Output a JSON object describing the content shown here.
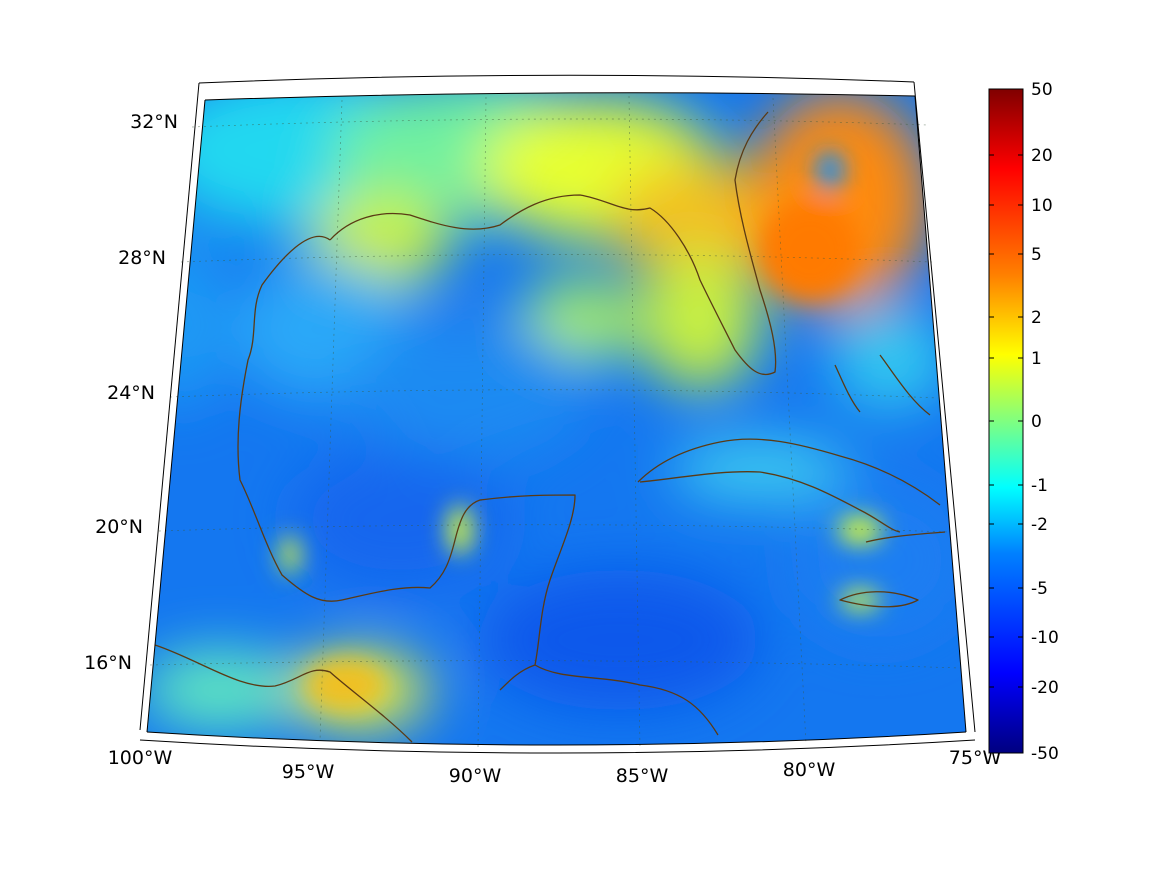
{
  "map": {
    "lon_labels": [
      "100°W",
      "95°W",
      "90°W",
      "85°W",
      "80°W",
      "75°W"
    ],
    "lat_labels": [
      "32°N",
      "28°N",
      "24°N",
      "20°N",
      "16°N"
    ]
  },
  "colorbar": {
    "tick_labels": [
      "50",
      "20",
      "10",
      "5",
      "2",
      "1",
      "0",
      "-1",
      "-2",
      "-5",
      "-10",
      "-20",
      "-50"
    ],
    "colormap": "jet",
    "colors": [
      "#000080",
      "#0000ff",
      "#0080ff",
      "#00ffff",
      "#80ff80",
      "#ffff00",
      "#ff8000",
      "#ff0000",
      "#800000"
    ],
    "coast_color": "#5a3a14"
  }
}
